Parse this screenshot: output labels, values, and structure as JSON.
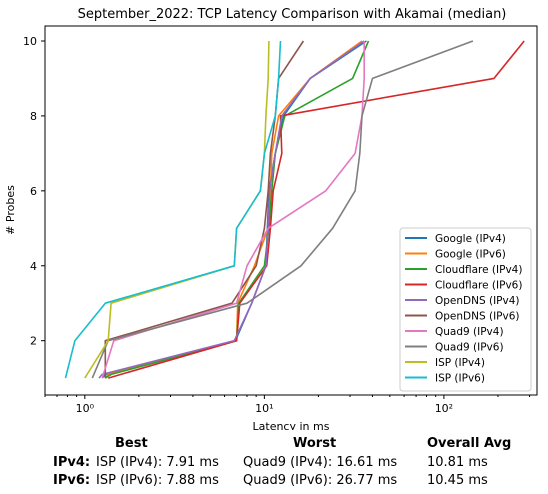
{
  "chart_data": {
    "type": "line",
    "title": "September_2022: TCP Latency Comparison with Akamai (median)",
    "xlabel": "Latency in ms",
    "ylabel": "# Probes",
    "xscale": "log",
    "xlim": [
      0.6,
      330
    ],
    "ylim": [
      0.55,
      10.4
    ],
    "xticks": [
      1,
      10,
      100
    ],
    "xtick_labels": [
      "10⁰",
      "10¹",
      "10²"
    ],
    "yticks": [
      2,
      4,
      6,
      8,
      10
    ],
    "ytick_labels": [
      "2",
      "4",
      "6",
      "8",
      "10"
    ],
    "grid": false,
    "legend_position": "lower-right",
    "series": [
      {
        "name": "Google (IPv4)",
        "color": "#1f77b4",
        "points": [
          [
            1.25,
            1
          ],
          [
            1.3,
            1.1
          ],
          [
            6.9,
            2
          ],
          [
            8.5,
            3
          ],
          [
            10.2,
            4
          ],
          [
            10.4,
            5
          ],
          [
            10.6,
            6
          ],
          [
            11.5,
            7
          ],
          [
            12.8,
            8
          ],
          [
            18,
            9
          ],
          [
            37,
            10
          ]
        ]
      },
      {
        "name": "Google (IPv6)",
        "color": "#ff7f0e",
        "points": [
          [
            1.3,
            1
          ],
          [
            1.35,
            1.1
          ],
          [
            7.0,
            2
          ],
          [
            7.1,
            3
          ],
          [
            8.8,
            4
          ],
          [
            10.5,
            5
          ],
          [
            10.8,
            6
          ],
          [
            11,
            7
          ],
          [
            12,
            8
          ],
          [
            18,
            9
          ],
          [
            35,
            10
          ]
        ]
      },
      {
        "name": "Cloudflare (IPv4)",
        "color": "#2ca02c",
        "points": [
          [
            1.3,
            1
          ],
          [
            1.4,
            1.1
          ],
          [
            7.0,
            2
          ],
          [
            7.2,
            3
          ],
          [
            10.0,
            4
          ],
          [
            10.6,
            5
          ],
          [
            11.0,
            6
          ],
          [
            11.5,
            7
          ],
          [
            13,
            8
          ],
          [
            31,
            9
          ],
          [
            38,
            10
          ]
        ]
      },
      {
        "name": "Cloudflare (IPv6)",
        "color": "#d62728",
        "points": [
          [
            1.35,
            1
          ],
          [
            7.0,
            2
          ],
          [
            7.3,
            3
          ],
          [
            10.3,
            4
          ],
          [
            10.8,
            5
          ],
          [
            11.2,
            6
          ],
          [
            12.5,
            7
          ],
          [
            12.3,
            8
          ],
          [
            190,
            9
          ],
          [
            280,
            10
          ]
        ]
      },
      {
        "name": "OpenDNS (IPv4)",
        "color": "#9467bd",
        "points": [
          [
            1.2,
            1
          ],
          [
            1.25,
            1.1
          ],
          [
            6.8,
            2
          ],
          [
            8.5,
            3
          ],
          [
            10.2,
            4
          ],
          [
            10.5,
            5
          ],
          [
            10.7,
            6
          ],
          [
            11.5,
            7
          ],
          [
            12.5,
            8
          ],
          [
            18,
            9
          ],
          [
            36,
            10
          ]
        ]
      },
      {
        "name": "OpenDNS (IPv6)",
        "color": "#8c564b",
        "points": [
          [
            1.3,
            1
          ],
          [
            1.3,
            2
          ],
          [
            6.6,
            3
          ],
          [
            9.0,
            4
          ],
          [
            10.0,
            5
          ],
          [
            10.5,
            6
          ],
          [
            10.8,
            7
          ],
          [
            11.5,
            8
          ],
          [
            12,
            9
          ],
          [
            16.5,
            10
          ]
        ]
      },
      {
        "name": "Quad9 (IPv4)",
        "color": "#e377c2",
        "points": [
          [
            1.25,
            1
          ],
          [
            1.45,
            2
          ],
          [
            7.0,
            3
          ],
          [
            8.0,
            4
          ],
          [
            10.5,
            5
          ],
          [
            22,
            6
          ],
          [
            32,
            7
          ],
          [
            35,
            8
          ],
          [
            36,
            9
          ],
          [
            36,
            10
          ]
        ]
      },
      {
        "name": "Quad9 (IPv6)",
        "color": "#7f7f7f",
        "points": [
          [
            1.1,
            1
          ],
          [
            1.35,
            2
          ],
          [
            8.0,
            3
          ],
          [
            16,
            4
          ],
          [
            24,
            5
          ],
          [
            32,
            6
          ],
          [
            34,
            7
          ],
          [
            35,
            8
          ],
          [
            40,
            9
          ],
          [
            145,
            10
          ]
        ]
      },
      {
        "name": "ISP (IPv4)",
        "color": "#bcbd22",
        "points": [
          [
            1.0,
            1
          ],
          [
            1.35,
            2
          ],
          [
            1.4,
            3
          ],
          [
            6.8,
            4
          ],
          [
            7.0,
            5
          ],
          [
            9.5,
            6
          ],
          [
            10.0,
            7
          ],
          [
            10.2,
            8
          ],
          [
            10.5,
            9
          ],
          [
            10.6,
            10
          ]
        ]
      },
      {
        "name": "ISP (IPv6)",
        "color": "#17becf",
        "points": [
          [
            0.78,
            1
          ],
          [
            0.88,
            2
          ],
          [
            1.3,
            3
          ],
          [
            6.8,
            4
          ],
          [
            7.0,
            5
          ],
          [
            9.5,
            6
          ],
          [
            10.0,
            7
          ],
          [
            11.5,
            8
          ],
          [
            12,
            9
          ],
          [
            12.3,
            10
          ]
        ]
      }
    ]
  },
  "summary": {
    "headers": {
      "best": "Best",
      "worst": "Worst",
      "avg": "Overall Avg"
    },
    "rows": [
      {
        "label": "IPv4:",
        "best": "ISP (IPv4): 7.91 ms",
        "worst": "Quad9 (IPv4): 16.61 ms",
        "avg": "10.81 ms"
      },
      {
        "label": "IPv6:",
        "best": "ISP (IPv6): 7.88 ms",
        "worst": "Quad9 (IPv6): 26.77 ms",
        "avg": "10.45 ms"
      }
    ]
  }
}
